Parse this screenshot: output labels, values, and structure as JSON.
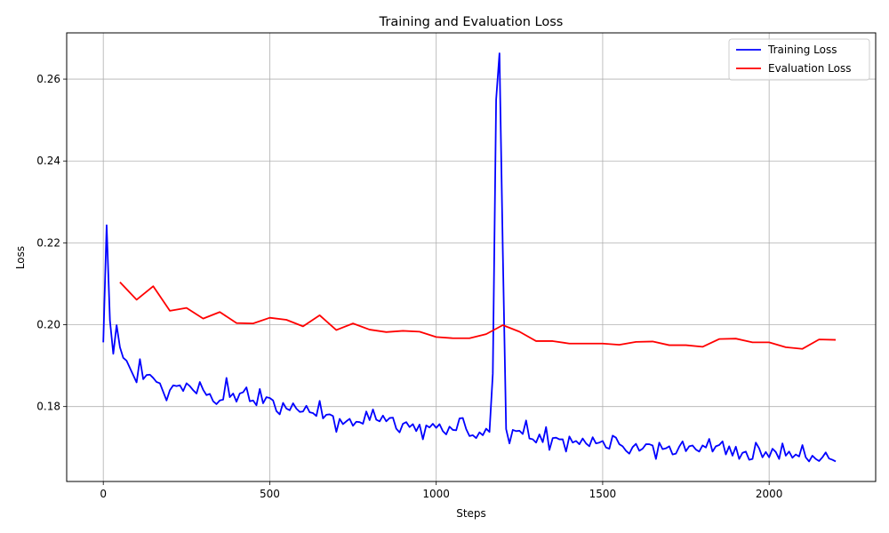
{
  "chart_data": {
    "type": "line",
    "title": "Training and Evaluation Loss",
    "xlabel": "Steps",
    "ylabel": "Loss",
    "xlim": [
      -110,
      2320
    ],
    "ylim": [
      0.1617,
      0.2713
    ],
    "xticks": [
      0,
      500,
      1000,
      1500,
      2000
    ],
    "xtick_labels": [
      "0",
      "500",
      "1000",
      "1500",
      "2000"
    ],
    "yticks": [
      0.18,
      0.2,
      0.22,
      0.24,
      0.26
    ],
    "ytick_labels": [
      "0.18",
      "0.20",
      "0.22",
      "0.24",
      "0.26"
    ],
    "grid": true,
    "legend_position": "top-right",
    "series": [
      {
        "name": "Training Loss",
        "color": "#0000ff",
        "points": [
          [
            0,
            0.1957
          ],
          [
            10,
            0.2243
          ],
          [
            20,
            0.201
          ],
          [
            30,
            0.1929
          ],
          [
            40,
            0.1999
          ],
          [
            50,
            0.1945
          ],
          [
            60,
            0.1919
          ],
          [
            70,
            0.1912
          ],
          [
            100,
            0.1859
          ],
          [
            110,
            0.1916
          ],
          [
            120,
            0.1867
          ],
          [
            130,
            0.1877
          ],
          [
            140,
            0.1878
          ],
          [
            150,
            0.187
          ],
          [
            160,
            0.186
          ],
          [
            170,
            0.1857
          ],
          [
            180,
            0.1836
          ],
          [
            190,
            0.1815
          ],
          [
            200,
            0.184
          ],
          [
            210,
            0.1852
          ],
          [
            220,
            0.185
          ],
          [
            230,
            0.1852
          ],
          [
            240,
            0.1838
          ],
          [
            250,
            0.1857
          ],
          [
            260,
            0.185
          ],
          [
            270,
            0.184
          ],
          [
            280,
            0.1832
          ],
          [
            290,
            0.186
          ],
          [
            300,
            0.1841
          ],
          [
            310,
            0.1828
          ],
          [
            320,
            0.1831
          ],
          [
            330,
            0.1813
          ],
          [
            340,
            0.1806
          ],
          [
            350,
            0.1815
          ],
          [
            360,
            0.1817
          ],
          [
            370,
            0.187
          ],
          [
            380,
            0.1823
          ],
          [
            390,
            0.1832
          ],
          [
            400,
            0.1812
          ],
          [
            410,
            0.1832
          ],
          [
            420,
            0.1835
          ],
          [
            430,
            0.1847
          ],
          [
            440,
            0.1813
          ],
          [
            450,
            0.1815
          ],
          [
            460,
            0.1803
          ],
          [
            470,
            0.1843
          ],
          [
            480,
            0.1808
          ],
          [
            490,
            0.1823
          ],
          [
            500,
            0.1821
          ],
          [
            510,
            0.1815
          ],
          [
            520,
            0.1789
          ],
          [
            530,
            0.1781
          ],
          [
            540,
            0.1809
          ],
          [
            550,
            0.1795
          ],
          [
            560,
            0.1791
          ],
          [
            570,
            0.1808
          ],
          [
            580,
            0.1795
          ],
          [
            590,
            0.1787
          ],
          [
            600,
            0.1788
          ],
          [
            610,
            0.1802
          ],
          [
            620,
            0.1786
          ],
          [
            630,
            0.1784
          ],
          [
            640,
            0.1777
          ],
          [
            650,
            0.1814
          ],
          [
            660,
            0.1771
          ],
          [
            670,
            0.178
          ],
          [
            680,
            0.1781
          ],
          [
            690,
            0.1777
          ],
          [
            700,
            0.1738
          ],
          [
            710,
            0.177
          ],
          [
            720,
            0.1757
          ],
          [
            730,
            0.1764
          ],
          [
            740,
            0.177
          ],
          [
            750,
            0.1753
          ],
          [
            760,
            0.1763
          ],
          [
            770,
            0.1762
          ],
          [
            780,
            0.1758
          ],
          [
            790,
            0.1788
          ],
          [
            800,
            0.1767
          ],
          [
            810,
            0.1793
          ],
          [
            820,
            0.1768
          ],
          [
            830,
            0.1764
          ],
          [
            840,
            0.1778
          ],
          [
            850,
            0.1764
          ],
          [
            860,
            0.1772
          ],
          [
            870,
            0.1773
          ],
          [
            880,
            0.1746
          ],
          [
            890,
            0.1737
          ],
          [
            900,
            0.1758
          ],
          [
            910,
            0.1762
          ],
          [
            920,
            0.175
          ],
          [
            930,
            0.1757
          ],
          [
            940,
            0.174
          ],
          [
            950,
            0.1756
          ],
          [
            960,
            0.172
          ],
          [
            970,
            0.1754
          ],
          [
            980,
            0.1749
          ],
          [
            990,
            0.1758
          ],
          [
            1000,
            0.1748
          ],
          [
            1010,
            0.1757
          ],
          [
            1020,
            0.174
          ],
          [
            1030,
            0.1732
          ],
          [
            1040,
            0.1751
          ],
          [
            1050,
            0.1743
          ],
          [
            1060,
            0.1742
          ],
          [
            1070,
            0.1771
          ],
          [
            1080,
            0.1772
          ],
          [
            1090,
            0.1745
          ],
          [
            1100,
            0.1728
          ],
          [
            1110,
            0.173
          ],
          [
            1120,
            0.1723
          ],
          [
            1130,
            0.1737
          ],
          [
            1140,
            0.173
          ],
          [
            1150,
            0.1746
          ],
          [
            1160,
            0.1738
          ],
          [
            1170,
            0.188
          ],
          [
            1180,
            0.255
          ],
          [
            1190,
            0.2663
          ],
          [
            1200,
            0.218
          ],
          [
            1210,
            0.1745
          ],
          [
            1220,
            0.171
          ],
          [
            1230,
            0.1743
          ],
          [
            1240,
            0.174
          ],
          [
            1250,
            0.1741
          ],
          [
            1260,
            0.1733
          ],
          [
            1270,
            0.1766
          ],
          [
            1280,
            0.1722
          ],
          [
            1290,
            0.172
          ],
          [
            1300,
            0.1712
          ],
          [
            1310,
            0.1732
          ],
          [
            1320,
            0.1713
          ],
          [
            1330,
            0.175
          ],
          [
            1340,
            0.1694
          ],
          [
            1350,
            0.1723
          ],
          [
            1360,
            0.1724
          ],
          [
            1370,
            0.172
          ],
          [
            1380,
            0.172
          ],
          [
            1390,
            0.169
          ],
          [
            1400,
            0.1727
          ],
          [
            1410,
            0.1712
          ],
          [
            1420,
            0.1716
          ],
          [
            1430,
            0.1708
          ],
          [
            1440,
            0.1722
          ],
          [
            1450,
            0.171
          ],
          [
            1460,
            0.1703
          ],
          [
            1470,
            0.1725
          ],
          [
            1480,
            0.171
          ],
          [
            1490,
            0.1712
          ],
          [
            1500,
            0.1716
          ],
          [
            1510,
            0.17
          ],
          [
            1520,
            0.1697
          ],
          [
            1530,
            0.1729
          ],
          [
            1540,
            0.1724
          ],
          [
            1550,
            0.1708
          ],
          [
            1560,
            0.1703
          ],
          [
            1570,
            0.1692
          ],
          [
            1580,
            0.1685
          ],
          [
            1590,
            0.1701
          ],
          [
            1600,
            0.1709
          ],
          [
            1610,
            0.1692
          ],
          [
            1620,
            0.1697
          ],
          [
            1630,
            0.1708
          ],
          [
            1640,
            0.1708
          ],
          [
            1650,
            0.1705
          ],
          [
            1660,
            0.1672
          ],
          [
            1670,
            0.1712
          ],
          [
            1680,
            0.1696
          ],
          [
            1690,
            0.1698
          ],
          [
            1700,
            0.1703
          ],
          [
            1710,
            0.1683
          ],
          [
            1720,
            0.1685
          ],
          [
            1730,
            0.1702
          ],
          [
            1740,
            0.1715
          ],
          [
            1750,
            0.1691
          ],
          [
            1760,
            0.1703
          ],
          [
            1770,
            0.1705
          ],
          [
            1780,
            0.1695
          ],
          [
            1790,
            0.169
          ],
          [
            1800,
            0.1705
          ],
          [
            1810,
            0.17
          ],
          [
            1820,
            0.1721
          ],
          [
            1830,
            0.169
          ],
          [
            1840,
            0.1703
          ],
          [
            1850,
            0.1706
          ],
          [
            1860,
            0.1715
          ],
          [
            1870,
            0.1683
          ],
          [
            1880,
            0.1703
          ],
          [
            1890,
            0.168
          ],
          [
            1900,
            0.1702
          ],
          [
            1910,
            0.1672
          ],
          [
            1920,
            0.1687
          ],
          [
            1930,
            0.169
          ],
          [
            1940,
            0.167
          ],
          [
            1950,
            0.1672
          ],
          [
            1960,
            0.1712
          ],
          [
            1970,
            0.1698
          ],
          [
            1980,
            0.1676
          ],
          [
            1990,
            0.1689
          ],
          [
            2000,
            0.1676
          ],
          [
            2010,
            0.1697
          ],
          [
            2020,
            0.1689
          ],
          [
            2030,
            0.1672
          ],
          [
            2040,
            0.171
          ],
          [
            2050,
            0.168
          ],
          [
            2060,
            0.169
          ],
          [
            2070,
            0.1675
          ],
          [
            2080,
            0.1683
          ],
          [
            2090,
            0.1678
          ],
          [
            2100,
            0.1706
          ],
          [
            2110,
            0.1676
          ],
          [
            2120,
            0.1666
          ],
          [
            2130,
            0.168
          ],
          [
            2140,
            0.1672
          ],
          [
            2150,
            0.1667
          ],
          [
            2160,
            0.1676
          ],
          [
            2170,
            0.1688
          ],
          [
            2180,
            0.1673
          ],
          [
            2190,
            0.167
          ],
          [
            2200,
            0.1666
          ]
        ]
      },
      {
        "name": "Evaluation Loss",
        "color": "#ff0000",
        "points": [
          [
            50,
            0.2104
          ],
          [
            100,
            0.2061
          ],
          [
            150,
            0.2094
          ],
          [
            200,
            0.2034
          ],
          [
            250,
            0.2041
          ],
          [
            300,
            0.2015
          ],
          [
            350,
            0.2031
          ],
          [
            400,
            0.2004
          ],
          [
            450,
            0.2003
          ],
          [
            500,
            0.2017
          ],
          [
            550,
            0.2012
          ],
          [
            600,
            0.1996
          ],
          [
            650,
            0.2023
          ],
          [
            700,
            0.1987
          ],
          [
            750,
            0.2003
          ],
          [
            800,
            0.1988
          ],
          [
            850,
            0.1982
          ],
          [
            900,
            0.1985
          ],
          [
            950,
            0.1983
          ],
          [
            1000,
            0.197
          ],
          [
            1050,
            0.1967
          ],
          [
            1100,
            0.1967
          ],
          [
            1150,
            0.1977
          ],
          [
            1200,
            0.1999
          ],
          [
            1250,
            0.1983
          ],
          [
            1300,
            0.196
          ],
          [
            1350,
            0.196
          ],
          [
            1400,
            0.1954
          ],
          [
            1450,
            0.1954
          ],
          [
            1500,
            0.1954
          ],
          [
            1550,
            0.1951
          ],
          [
            1600,
            0.1958
          ],
          [
            1650,
            0.1959
          ],
          [
            1700,
            0.195
          ],
          [
            1750,
            0.195
          ],
          [
            1800,
            0.1946
          ],
          [
            1850,
            0.1965
          ],
          [
            1900,
            0.1966
          ],
          [
            1950,
            0.1957
          ],
          [
            2000,
            0.1957
          ],
          [
            2050,
            0.1945
          ],
          [
            2100,
            0.1941
          ],
          [
            2150,
            0.1964
          ],
          [
            2200,
            0.1963
          ]
        ]
      }
    ]
  }
}
